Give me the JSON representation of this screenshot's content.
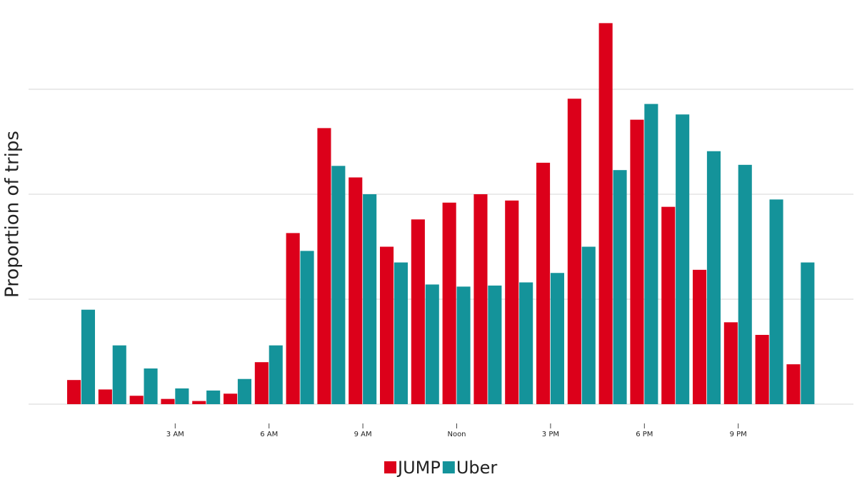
{
  "chart_data": {
    "type": "bar",
    "y_label": "Proportion of trips",
    "categories": [
      null,
      null,
      null,
      "3 AM",
      null,
      null,
      "6 AM",
      null,
      null,
      "9 AM",
      null,
      null,
      "Noon",
      null,
      null,
      "3 PM",
      null,
      null,
      "6 PM",
      null,
      null,
      "9 PM",
      null,
      null
    ],
    "series": [
      {
        "name": "JUMP",
        "color": "#dc001a",
        "values": [
          0.23,
          0.14,
          0.08,
          0.05,
          0.03,
          0.1,
          0.4,
          1.63,
          2.63,
          2.16,
          1.5,
          1.76,
          1.92,
          2.0,
          1.94,
          2.3,
          2.91,
          3.63,
          2.71,
          1.88,
          1.28,
          0.78,
          0.66,
          0.38
        ]
      },
      {
        "name": "Uber",
        "color": "#14939a",
        "values": [
          0.9,
          0.56,
          0.34,
          0.15,
          0.13,
          0.24,
          0.56,
          1.46,
          2.27,
          2.0,
          1.35,
          1.14,
          1.12,
          1.13,
          1.16,
          1.25,
          1.5,
          2.23,
          2.86,
          2.76,
          2.41,
          2.28,
          1.95,
          1.35
        ]
      }
    ],
    "ylim": [
      0,
      3.8
    ],
    "grid_lines": [
      0,
      1,
      2,
      3
    ],
    "legend": "bottom"
  }
}
